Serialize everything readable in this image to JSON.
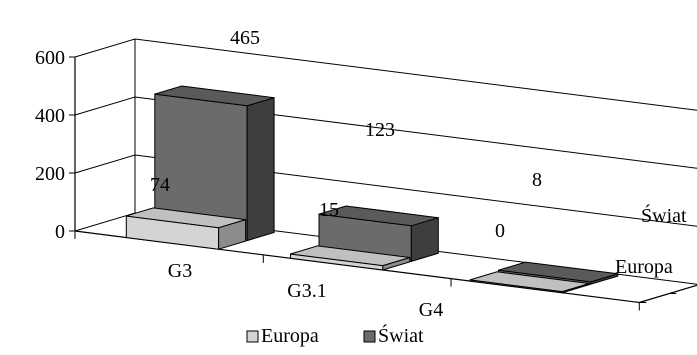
{
  "chart_data": {
    "type": "bar",
    "categories": [
      "G3",
      "G3.1",
      "G4"
    ],
    "series": [
      {
        "name": "Europa",
        "values": [
          74,
          15,
          0
        ]
      },
      {
        "name": "Świat",
        "values": [
          465,
          123,
          8
        ]
      }
    ],
    "depth_labels": [
      "Świat",
      "Europa"
    ],
    "ylim": [
      0,
      600
    ],
    "yticks": [
      "0",
      "200",
      "400",
      "600"
    ],
    "grid": true,
    "legend_position": "bottom-center",
    "colors": {
      "Europa_front": "#d4d4d4",
      "Europa_top": "#c0c0c0",
      "Europa_side": "#8c8c8c",
      "Swiat_front": "#6b6b6b",
      "Swiat_top": "#5a5a5a",
      "Swiat_side": "#3e3e3e"
    }
  }
}
